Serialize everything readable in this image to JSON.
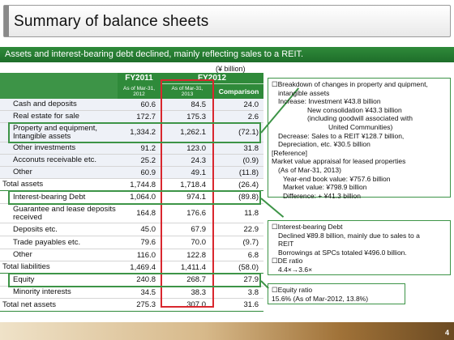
{
  "title": "Summary of balance sheets",
  "subtitle": "Assets and interest-bearing debt declined, mainly reflecting sales to a REIT.",
  "unit": "(¥ billion)",
  "table": {
    "headers": {
      "fy2011": "FY2011",
      "fy2011_asof": "As of Mar-31,",
      "fy2011_year": "2012",
      "fy2012": "FY2012",
      "fy2012_asof": "As of Mar-31,",
      "fy2012_year": "2013",
      "comparison": "Comparison"
    },
    "rows": [
      {
        "label": "Cash and deposits",
        "fy2011": "60.6",
        "fy2012": "84.5",
        "comparison": "24.0"
      },
      {
        "label": "Real estate for sale",
        "fy2011": "172.7",
        "fy2012": "175.3",
        "comparison": "2.6"
      },
      {
        "label": "Property and equipment, Intangible assets",
        "fy2011": "1,334.2",
        "fy2012": "1,262.1",
        "comparison": "(72.1)"
      },
      {
        "label": "Other investments",
        "fy2011": "91.2",
        "fy2012": "123.0",
        "comparison": "31.8"
      },
      {
        "label": "Acconuts receivable etc.",
        "fy2011": "25.2",
        "fy2012": "24.3",
        "comparison": "(0.9)"
      },
      {
        "label": "Other",
        "fy2011": "60.9",
        "fy2012": "49.1",
        "comparison": "(11.8)"
      },
      {
        "label": "Total assets",
        "fy2011": "1,744.8",
        "fy2012": "1,718.4",
        "comparison": "(26.4)"
      },
      {
        "label": "Interest-bearing Debt",
        "fy2011": "1,064.0",
        "fy2012": "974.1",
        "comparison": "(89.8)"
      },
      {
        "label": "Guarantee and lease deposits received",
        "fy2011": "164.8",
        "fy2012": "176.6",
        "comparison": "11.8"
      },
      {
        "label": "Deposits etc.",
        "fy2011": "45.0",
        "fy2012": "67.9",
        "comparison": "22.9"
      },
      {
        "label": "Trade payables etc.",
        "fy2011": "79.6",
        "fy2012": "70.0",
        "comparison": "(9.7)"
      },
      {
        "label": "Other",
        "fy2011": "116.0",
        "fy2012": "122.8",
        "comparison": "6.8"
      },
      {
        "label": "Total liabilities",
        "fy2011": "1,469.4",
        "fy2012": "1,411.4",
        "comparison": "(58.0)"
      },
      {
        "label": "Equity",
        "fy2011": "240.8",
        "fy2012": "268.7",
        "comparison": "27.9"
      },
      {
        "label": "Minority interests",
        "fy2011": "34.5",
        "fy2012": "38.3",
        "comparison": "3.8"
      },
      {
        "label": "Total net assets",
        "fy2011": "275.3",
        "fy2012": "307.0",
        "comparison": "31.6"
      }
    ]
  },
  "panel_property": {
    "l1": "☐Breakdown of changes in property and quipment,",
    "l2": "intangible assets",
    "l3": "Increase: Investment ¥43.8 billion",
    "l4": "New consolidation ¥43.3 billion",
    "l5": "(including goodwill associated with",
    "l6": "United Communities)",
    "l7": "Decrease: Sales to a REIT ¥128.7 billion,",
    "l8": "Depreciation, etc. ¥30.5 billion",
    "l9": "[Reference]",
    "l10": "Market value appraisal for leased properties",
    "l11": "(As of Mar-31, 2013)",
    "l12": "Year-end book value: ¥757.6 billion",
    "l13": "Market value: ¥798.9 billion",
    "l14": "Difference: + ¥41.3 billion"
  },
  "panel_debt": {
    "l1": "☐Interest-bearing Debt",
    "l2": "Declined ¥89.8 billion, mainly due to sales to a",
    "l3": "REIT",
    "l4": "Borrowings at SPCs totaled ¥496.0 billion.",
    "l5": "☐DE ratio",
    "l6": "4.4×→3.6×"
  },
  "panel_equity": {
    "l1": "☐Equity ratio",
    "l2": "15.6% (As of Mar-2012, 13.8%)"
  },
  "page_number": "4",
  "colors": {
    "accent_green": "#2f8a3a",
    "highlight_red": "#d9272e"
  }
}
